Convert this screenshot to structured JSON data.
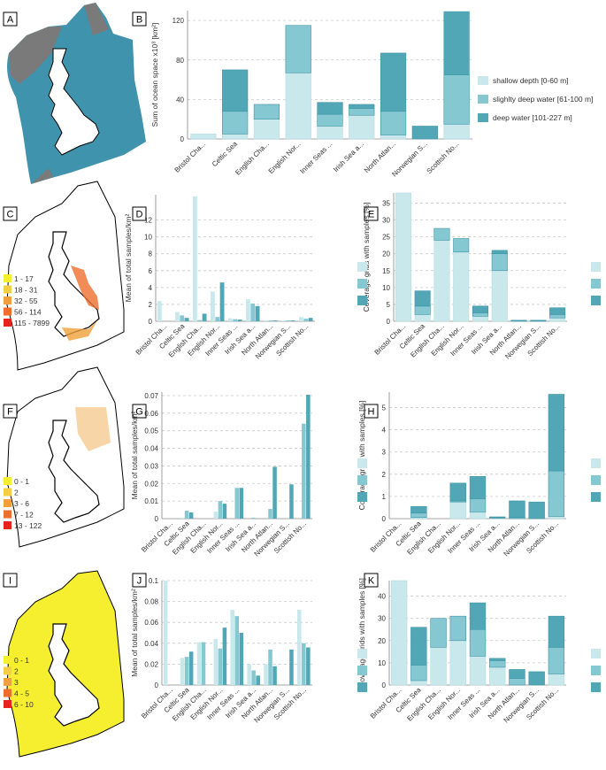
{
  "colors": {
    "shallow": "#c9e8ec",
    "slight": "#86c8d2",
    "deep": "#52a7b6",
    "map_land": "#ffffff",
    "map_grey": "#7a7a7a",
    "sea_blue": "#3f93ac",
    "heat_1": "#f5ef2f",
    "heat_2": "#f3cf45",
    "heat_3": "#f0a13b",
    "heat_4": "#ee6e2e",
    "heat_5": "#e7231f"
  },
  "panel_labels": [
    "A",
    "B",
    "C",
    "D",
    "E",
    "F",
    "G",
    "H",
    "I",
    "J",
    "K"
  ],
  "region_ticks": [
    "Bristol Cha...",
    "Celtic Sea",
    "English Cha...",
    "English Nor...",
    "Inner Seas ...",
    "Irish Sea a...",
    "North Atlan...",
    "Norwegian S...",
    "Scottish No..."
  ],
  "legend_depth": [
    "shallow depth [0-60 m]",
    "slighlty deep water [61-100 m]",
    "deep water [101-227 m]"
  ],
  "map_legends": {
    "C": [
      "1 - 17",
      "18 - 31",
      "32 - 55",
      "56 - 114",
      "115 - 7899"
    ],
    "F": [
      "0 - 1",
      "2",
      "3 - 6",
      "7 - 12",
      "13 - 122"
    ],
    "I": [
      "0 - 1",
      "2",
      "3",
      "4 - 5",
      "6 - 10"
    ]
  },
  "chart_data": [
    {
      "id": "B",
      "type": "bar",
      "stacked": true,
      "ylabel": "Sum of ocean space x10³ [km²]",
      "ylim": [
        0,
        130
      ],
      "yticks": [
        0,
        40,
        80,
        120
      ],
      "series": [
        {
          "name": "shallow depth [0-60 m]",
          "values": [
            5,
            5,
            20,
            67,
            13,
            24,
            4,
            0,
            15
          ]
        },
        {
          "name": "slighlty deep water [61-100 m]",
          "values": [
            0,
            23,
            15,
            48,
            12,
            7,
            24,
            0,
            50
          ]
        },
        {
          "name": "deep water [101-227 m]",
          "values": [
            0,
            42,
            0,
            0,
            12,
            4,
            59,
            13,
            64
          ]
        }
      ]
    },
    {
      "id": "D",
      "type": "bar",
      "grouped": true,
      "ylabel": "Mean of total samples/km²",
      "ylim": [
        0,
        15
      ],
      "yticks": [
        0,
        2,
        4,
        6,
        8,
        10,
        12
      ],
      "series": [
        {
          "name": "shallow",
          "values": [
            2.4,
            1.1,
            14.8,
            3.5,
            0.35,
            2.6,
            0.1,
            0.1,
            0.5
          ]
        },
        {
          "name": "slight",
          "values": [
            0,
            0.7,
            0.15,
            0.5,
            0.25,
            2.1,
            0.1,
            0.1,
            0.3
          ]
        },
        {
          "name": "deep",
          "values": [
            0,
            0.4,
            0.9,
            4.6,
            0.2,
            1.8,
            0.1,
            0.1,
            0.4
          ]
        }
      ]
    },
    {
      "id": "E",
      "type": "bar",
      "stacked": true,
      "ylabel": "Coverage grids with samples [%]",
      "ylim": [
        0,
        38
      ],
      "yticks": [
        0,
        5,
        10,
        15,
        20,
        25,
        30,
        35
      ],
      "series": [
        {
          "name": "shallow",
          "values": [
            38,
            2,
            24,
            20.5,
            1.5,
            15,
            0,
            0,
            1
          ]
        },
        {
          "name": "slight",
          "values": [
            0,
            2.5,
            3.5,
            4,
            1,
            5,
            0,
            0,
            1
          ]
        },
        {
          "name": "deep",
          "values": [
            0,
            4.5,
            0,
            0,
            2,
            1,
            0.3,
            0.3,
            2
          ]
        }
      ]
    },
    {
      "id": "G",
      "type": "bar",
      "grouped": true,
      "ylabel": "Mean of total samples/km²",
      "ylim": [
        0,
        0.072
      ],
      "yticks": [
        0,
        0.01,
        0.02,
        0.03,
        0.04,
        0.05,
        0.06,
        0.07
      ],
      "series": [
        {
          "name": "shallow",
          "values": [
            0,
            0.0005,
            0,
            0.004,
            0.0,
            0.0,
            0.0,
            0,
            0.0
          ]
        },
        {
          "name": "slight",
          "values": [
            0,
            0.0045,
            0,
            0.01,
            0.0175,
            0.0005,
            0.0055,
            0,
            0.054
          ]
        },
        {
          "name": "deep",
          "values": [
            0,
            0.0035,
            0,
            0.0085,
            0.0175,
            0,
            0.0295,
            0.0195,
            0.0705
          ]
        }
      ]
    },
    {
      "id": "H",
      "type": "bar",
      "stacked": true,
      "ylabel": "Coverage grids with samples [%]",
      "ylim": [
        0,
        5.7
      ],
      "yticks": [
        0,
        1,
        2,
        3,
        4,
        5
      ],
      "series": [
        {
          "name": "shallow",
          "values": [
            0,
            0.05,
            0,
            0.75,
            0.3,
            0.02,
            0,
            0,
            0.1
          ]
        },
        {
          "name": "slight",
          "values": [
            0,
            0.2,
            0,
            0.05,
            0.6,
            0.03,
            0.05,
            0,
            2.05
          ]
        },
        {
          "name": "deep",
          "values": [
            0,
            0.3,
            0,
            0.8,
            1.0,
            0.03,
            0.75,
            0.75,
            3.45
          ]
        }
      ]
    },
    {
      "id": "J",
      "type": "bar",
      "grouped": true,
      "ylabel": "Mean of total samples/km²",
      "ylim": [
        0,
        0.1
      ],
      "yticks": [
        0,
        0.02,
        0.04,
        0.06,
        0.08,
        0.1
      ],
      "series": [
        {
          "name": "shallow",
          "values": [
            0.1,
            0.026,
            0.041,
            0.044,
            0.072,
            0.02,
            0.02,
            0.0,
            0.072
          ]
        },
        {
          "name": "slight",
          "values": [
            0,
            0.027,
            0.041,
            0.035,
            0.066,
            0.014,
            0.034,
            0.0,
            0.04
          ]
        },
        {
          "name": "deep",
          "values": [
            0,
            0.032,
            0.0,
            0.055,
            0.05,
            0.009,
            0.018,
            0.034,
            0.036
          ]
        }
      ]
    },
    {
      "id": "K",
      "type": "bar",
      "stacked": true,
      "ylabel": "Coverage grids with samples [%]",
      "ylim": [
        0,
        47
      ],
      "yticks": [
        0,
        10,
        20,
        30,
        40
      ],
      "series": [
        {
          "name": "shallow",
          "values": [
            47,
            2,
            17,
            20,
            13,
            8,
            0,
            0,
            5
          ]
        },
        {
          "name": "slight",
          "values": [
            0,
            7,
            13,
            11,
            12,
            3,
            3,
            0,
            12
          ]
        },
        {
          "name": "deep",
          "values": [
            0,
            17,
            0,
            0,
            12,
            1,
            4,
            6,
            14
          ]
        }
      ]
    }
  ]
}
